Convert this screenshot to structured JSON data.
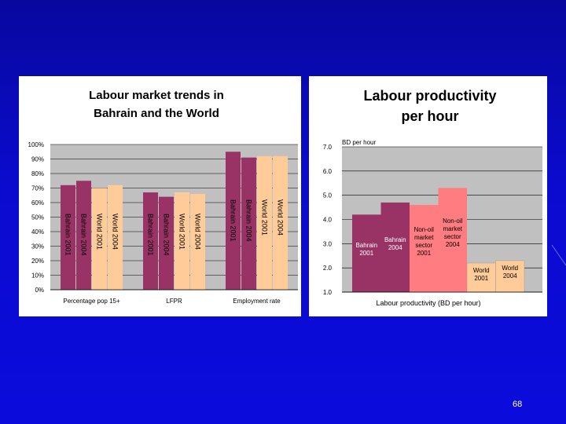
{
  "slide": {
    "page_number": "68",
    "background": "#0a0ad6"
  },
  "chart_data": [
    {
      "type": "bar",
      "title": "Labour market trends in Bahrain and the World",
      "title_lines": [
        "Labour market trends in",
        "Bahrain and the World"
      ],
      "ylim": [
        0,
        100
      ],
      "y_ticks": [
        "100%",
        "90%",
        "80%",
        "70%",
        "60%",
        "50%",
        "40%",
        "30%",
        "20%",
        "10%",
        "0%"
      ],
      "grid": true,
      "plot_background": "#c0c0c0",
      "categories": [
        "Percentage pop 15+",
        "LFPR",
        "Employment rate"
      ],
      "series": [
        {
          "name": "Bahrain 2001",
          "color": "#993366",
          "values": [
            72,
            67,
            95
          ]
        },
        {
          "name": "Bahrain 2004",
          "color": "#993366",
          "values": [
            75,
            64,
            91
          ]
        },
        {
          "name": "World 2001",
          "color": "#ffcc99",
          "values": [
            70,
            67,
            92
          ]
        },
        {
          "name": "World 2004",
          "color": "#ffcc99",
          "values": [
            72,
            66,
            92
          ]
        }
      ],
      "bar_labels": [
        [
          "Bahrain 2001",
          "Bahrain 2004",
          "World 2001",
          "World 2004"
        ],
        [
          "Bahrain 2001",
          "Bahrain 2004",
          "World 2001",
          "World 2004"
        ],
        [
          "Bahrain 2001",
          "Bahrain 2004",
          "World 2001",
          "World 2004"
        ]
      ]
    },
    {
      "type": "bar",
      "title": "Labour productivity per hour",
      "title_lines": [
        "Labour productivity",
        "per hour"
      ],
      "unit_note": "BD per hour",
      "xlabel": "Labour productivity (BD per hour)",
      "ylim": [
        1,
        7
      ],
      "y_ticks": [
        "7.0",
        "6.0",
        "5.0",
        "4.0",
        "3.0",
        "2.0",
        "1.0"
      ],
      "grid": true,
      "plot_background": "#c0c0c0",
      "categories": [
        "Bahrain 2001",
        "Bahrain 2004",
        "Non-oil market sector 2001",
        "Non-oil market sector 2004",
        "World 2001",
        "World 2004"
      ],
      "series": [
        {
          "name": "Labour productivity",
          "values": [
            4.2,
            4.7,
            4.6,
            5.3,
            2.2,
            2.3
          ]
        }
      ],
      "colors": [
        "#993366",
        "#993366",
        "#ff7c80",
        "#ff7c80",
        "#ffcc99",
        "#ffcc99"
      ],
      "bar_labels": [
        [
          "Bahrain",
          "2001"
        ],
        [
          "Bahrain",
          "2004"
        ],
        [
          "Non-oil",
          "market",
          "sector",
          "2001"
        ],
        [
          "Non-oil",
          "market",
          "sector",
          "2004"
        ],
        [
          "World",
          "2001"
        ],
        [
          "World",
          "2004"
        ]
      ]
    }
  ]
}
